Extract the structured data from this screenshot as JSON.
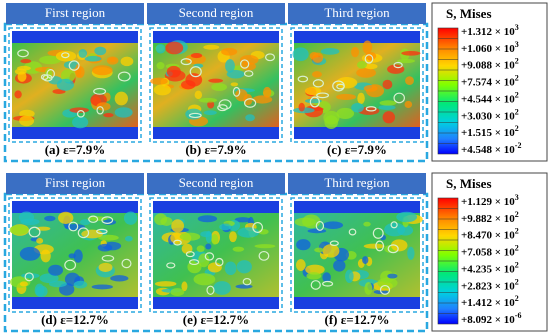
{
  "rows": [
    {
      "panels": [
        {
          "header": "First region",
          "caption": "(a) ε=7.9%"
        },
        {
          "header": "Second region",
          "caption": "(b) ε=7.9%"
        },
        {
          "header": "Third region",
          "caption": "(c) ε=7.9%"
        }
      ],
      "legend": {
        "title": "S, Mises",
        "labels": [
          {
            "mantissa": "+1.312 × 10",
            "exponent": "3"
          },
          {
            "mantissa": "+1.060 × 10",
            "exponent": "3"
          },
          {
            "mantissa": "+9.088 × 10",
            "exponent": "2"
          },
          {
            "mantissa": "+7.574 × 10",
            "exponent": "2"
          },
          {
            "mantissa": "+4.544 × 10",
            "exponent": "2"
          },
          {
            "mantissa": "+3.030 × 10",
            "exponent": "2"
          },
          {
            "mantissa": "+1.515 × 10",
            "exponent": "2"
          },
          {
            "mantissa": "+4.548 × 10",
            "exponent": "-2"
          }
        ]
      }
    },
    {
      "panels": [
        {
          "header": "First region",
          "caption": "(d) ε=12.7%"
        },
        {
          "header": "Second region",
          "caption": "(e) ε=12.7%"
        },
        {
          "header": "Third region",
          "caption": "(f) ε=12.7%"
        }
      ],
      "legend": {
        "title": "S, Mises",
        "labels": [
          {
            "mantissa": "+1.129 × 10",
            "exponent": "3"
          },
          {
            "mantissa": "+9.882 × 10",
            "exponent": "2"
          },
          {
            "mantissa": "+8.470 × 10",
            "exponent": "2"
          },
          {
            "mantissa": "+7.058 × 10",
            "exponent": "2"
          },
          {
            "mantissa": "+4.235 × 10",
            "exponent": "2"
          },
          {
            "mantissa": "+2.823 × 10",
            "exponent": "2"
          },
          {
            "mantissa": "+1.412 × 10",
            "exponent": "2"
          },
          {
            "mantissa": "+8.092 × 10",
            "exponent": "-6"
          }
        ]
      }
    }
  ]
}
